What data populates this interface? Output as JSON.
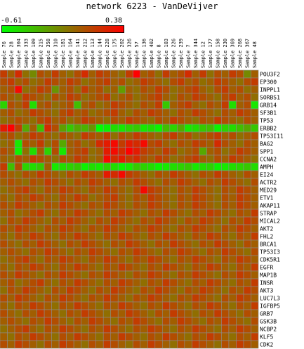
{
  "title": "network 6223 - VanDeVijver",
  "scale": {
    "min_label": "-0.61",
    "max_label": "0.38",
    "min": -0.61,
    "max": 0.38,
    "colors": {
      "low": "#00ff00",
      "mid": "#7f7f00",
      "high": "#ff0000"
    }
  },
  "chart_data": {
    "type": "heatmap",
    "title": "network 6223 - VanDeVijver",
    "columns": [
      "Sample 76",
      "Sample 28",
      "Sample 304",
      "Sample 333",
      "Sample 109",
      "Sample 215",
      "Sample 358",
      "Sample 310",
      "Sample 181",
      "Sample 164",
      "Sample 141",
      "Sample 212",
      "Sample 113",
      "Sample 144",
      "Sample 228",
      "Sample 175",
      "Sample 202",
      "Sample 326",
      "Sample 57",
      "Sample 136",
      "Sample 402",
      "Sample 8",
      "Sample 103",
      "Sample 226",
      "Sample 239",
      "Sample 7",
      "Sample 344",
      "Sample 12",
      "Sample 177",
      "Sample 158",
      "Sample 230",
      "Sample 369",
      "Sample 268",
      "Sample 367",
      "Sample 48"
    ],
    "rows": [
      "POU3F2",
      "EP300",
      "INPPL1",
      "SORBS1",
      "GRB14",
      "SF3B1",
      "TP53",
      "ERBB2",
      "TP53I11",
      "BAG2",
      "SPP1",
      "CCNA2",
      "AMPH",
      "EI24",
      "ACTR2",
      "MED29",
      "ETV1",
      "AKAP11",
      "STRAP",
      "MICAL2",
      "AKT2",
      "FHL2",
      "BRCA1",
      "TP53I3",
      "CDK5R1",
      "EGFR",
      "MAP1B",
      "INSR",
      "AKT3",
      "LUC7L3",
      "IGFBP5",
      "GRB7",
      "GSK3B",
      "NCBP2",
      "KLF5",
      "CDK2"
    ],
    "value_range": [
      -0.61,
      0.38
    ],
    "values": [
      [
        0.2,
        0.1,
        0.25,
        0.05,
        -0.05,
        0.15,
        0.1,
        0.2,
        0.1,
        0.05,
        0.15,
        0.25,
        0.1,
        0.2,
        0.15,
        0.1,
        0.05,
        0.2,
        0.38,
        0.1,
        0.15,
        0.05,
        0.2,
        0.1,
        0.15,
        0.25,
        0.1,
        0.2,
        0.05,
        0.15,
        0.1,
        0.2,
        0.15,
        -0.05,
        0.1
      ],
      [
        0.15,
        0.2,
        0.1,
        0.15,
        0.05,
        0.1,
        0.2,
        0.15,
        0.1,
        0.2,
        0.15,
        0.05,
        0.1,
        0.15,
        0.2,
        0.1,
        0.15,
        0.05,
        0.1,
        0.2,
        0.15,
        0.1,
        0.05,
        0.15,
        0.2,
        0.1,
        0.15,
        0.05,
        0.1,
        0.2,
        0.15,
        0.1,
        0.05,
        0.15,
        0.2
      ],
      [
        0.1,
        0.15,
        0.35,
        0.05,
        0.1,
        0.2,
        0.15,
        -0.1,
        0.1,
        0.15,
        0.05,
        0.2,
        0.1,
        0.15,
        0.05,
        0.1,
        -0.15,
        0.1,
        0.05,
        0.15,
        0.1,
        0.2,
        0.15,
        0.05,
        0.1,
        0.15,
        0.2,
        0.1,
        0.05,
        0.15,
        0.2,
        0.1,
        0.15,
        0.05,
        0.1
      ],
      [
        0.15,
        0.1,
        0.05,
        0.2,
        0.15,
        0.1,
        0.05,
        0.15,
        0.1,
        0.2,
        0.15,
        0.05,
        0.1,
        0.15,
        0.2,
        0.05,
        0.1,
        0.15,
        0.05,
        0.1,
        0.15,
        0.2,
        0.1,
        0.05,
        0.15,
        0.1,
        0.2,
        0.15,
        0.1,
        0.05,
        0.15,
        0.2,
        0.1,
        0.15,
        0.05
      ],
      [
        -0.4,
        0.15,
        0.1,
        0.2,
        -0.45,
        0.1,
        0.15,
        0.05,
        0.1,
        0.15,
        -0.3,
        0.1,
        0.15,
        0.05,
        0.1,
        0.2,
        0.15,
        0.1,
        0.05,
        0.15,
        0.1,
        0.2,
        -0.35,
        0.1,
        0.15,
        0.2,
        0.1,
        0.05,
        0.15,
        0.1,
        0.2,
        -0.45,
        0.1,
        0.15,
        -0.5
      ],
      [
        0.1,
        0.15,
        0.05,
        0.1,
        0.2,
        0.15,
        0.1,
        0.05,
        0.15,
        0.2,
        0.1,
        0.15,
        0.05,
        0.1,
        0.15,
        0.2,
        0.1,
        0.05,
        0.15,
        0.1,
        0.2,
        0.15,
        0.1,
        0.05,
        0.15,
        0.1,
        0.2,
        0.15,
        0.1,
        0.05,
        0.15,
        0.1,
        0.2,
        0.15,
        0.1
      ],
      [
        0.05,
        0.1,
        0.15,
        0.1,
        0.05,
        0.15,
        0.2,
        0.1,
        0.15,
        0.05,
        0.1,
        0.2,
        0.15,
        0.1,
        0.05,
        0.15,
        0.1,
        0.2,
        0.15,
        0.1,
        0.05,
        0.15,
        0.1,
        0.2,
        0.15,
        0.1,
        0.05,
        0.15,
        0.1,
        0.2,
        0.15,
        0.1,
        0.05,
        0.15,
        0.1
      ],
      [
        0.3,
        0.38,
        0.2,
        -0.2,
        0.1,
        -0.3,
        0.25,
        0.15,
        -0.15,
        -0.35,
        -0.2,
        -0.25,
        -0.1,
        -0.61,
        -0.55,
        -0.45,
        -0.5,
        -0.4,
        -0.35,
        -0.5,
        -0.45,
        -0.55,
        -0.3,
        -0.4,
        -0.2,
        -0.5,
        -0.45,
        -0.35,
        -0.3,
        -0.55,
        -0.4,
        -0.45,
        -0.3,
        -0.2,
        -0.35
      ],
      [
        0.1,
        0.15,
        0.05,
        0.1,
        0.2,
        0.15,
        0.1,
        0.05,
        0.15,
        0.1,
        0.05,
        0.2,
        0.15,
        0.1,
        0.2,
        0.05,
        0.15,
        0.1,
        0.2,
        0.15,
        0.1,
        0.05,
        0.15,
        0.2,
        0.1,
        0.15,
        0.05,
        0.1,
        0.15,
        0.2,
        0.1,
        0.15,
        0.05,
        0.1,
        0.15
      ],
      [
        0.05,
        0.1,
        -0.5,
        0.15,
        0.1,
        0.2,
        0.05,
        0.15,
        -0.2,
        0.1,
        0.15,
        0.05,
        0.1,
        0.25,
        0.3,
        0.35,
        0.2,
        0.3,
        0.25,
        0.35,
        0.15,
        0.2,
        0.1,
        0.05,
        0.15,
        0.1,
        0.2,
        0.15,
        0.1,
        0.25,
        0.15,
        0.1,
        0.05,
        0.15,
        0.1
      ],
      [
        0.15,
        0.1,
        -0.55,
        0.05,
        -0.45,
        0.1,
        -0.4,
        0.15,
        -0.5,
        0.1,
        0.15,
        0.2,
        0.05,
        0.1,
        0.3,
        0.35,
        0.25,
        0.38,
        0.3,
        0.2,
        0.15,
        0.1,
        0.2,
        0.15,
        0.05,
        0.1,
        0.15,
        -0.2,
        0.1,
        0.15,
        0.05,
        0.1,
        0.2,
        0.15,
        0.1
      ],
      [
        0.1,
        0.05,
        0.15,
        0.1,
        0.2,
        0.15,
        0.1,
        0.05,
        0.15,
        0.1,
        0.2,
        0.15,
        0.05,
        0.1,
        0.35,
        0.25,
        0.3,
        0.2,
        0.25,
        0.15,
        0.1,
        0.2,
        0.15,
        0.05,
        0.1,
        0.15,
        0.2,
        0.1,
        0.05,
        0.15,
        0.1,
        0.2,
        0.15,
        0.1,
        0.05
      ],
      [
        0.2,
        -0.3,
        0.15,
        -0.4,
        -0.45,
        -0.35,
        0.1,
        -0.5,
        -0.45,
        -0.4,
        -0.35,
        -0.55,
        -0.45,
        -0.5,
        -0.4,
        -0.45,
        -0.55,
        -0.5,
        -0.35,
        -0.4,
        -0.45,
        -0.55,
        -0.5,
        -0.45,
        -0.4,
        -0.35,
        -0.5,
        -0.45,
        -0.4,
        -0.55,
        -0.5,
        -0.45,
        -0.4,
        -0.35,
        -0.45
      ],
      [
        0.15,
        0.1,
        0.05,
        0.15,
        0.1,
        0.2,
        0.15,
        0.1,
        0.05,
        0.15,
        0.1,
        0.2,
        0.15,
        0.1,
        0.3,
        0.25,
        0.35,
        0.2,
        0.15,
        0.1,
        0.05,
        0.15,
        0.1,
        0.2,
        0.15,
        0.1,
        0.05,
        0.15,
        0.1,
        0.2,
        0.15,
        0.1,
        0.05,
        0.15,
        0.1
      ],
      [
        0.1,
        0.15,
        0.1,
        0.05,
        0.15,
        0.1,
        0.2,
        0.15,
        0.1,
        0.05,
        0.15,
        0.1,
        0.2,
        0.15,
        0.1,
        0.05,
        0.15,
        0.1,
        0.2,
        0.15,
        0.1,
        0.05,
        0.15,
        0.1,
        0.2,
        0.15,
        0.1,
        0.05,
        0.15,
        0.1,
        0.2,
        0.15,
        0.1,
        0.05,
        0.15
      ],
      [
        0.05,
        0.1,
        0.15,
        0.2,
        0.1,
        0.05,
        0.15,
        0.1,
        0.2,
        0.15,
        0.1,
        0.05,
        0.15,
        0.1,
        0.2,
        0.15,
        0.1,
        0.05,
        0.15,
        0.35,
        0.2,
        0.15,
        0.1,
        0.05,
        0.15,
        0.1,
        0.2,
        0.15,
        0.1,
        0.05,
        0.15,
        0.1,
        0.2,
        0.15,
        0.1
      ],
      [
        0.1,
        0.05,
        0.15,
        0.1,
        0.2,
        0.15,
        0.1,
        0.05,
        0.15,
        0.1,
        0.2,
        0.15,
        0.05,
        0.1,
        0.15,
        0.2,
        0.1,
        0.05,
        0.15,
        0.1,
        0.2,
        0.15,
        0.1,
        0.05,
        0.15,
        0.1,
        0.2,
        0.15,
        0.1,
        0.05,
        0.15,
        0.1,
        0.2,
        0.15,
        0.1
      ],
      [
        0.15,
        0.1,
        0.2,
        0.15,
        0.1,
        0.05,
        0.15,
        0.1,
        0.2,
        0.15,
        0.1,
        0.05,
        0.15,
        0.1,
        0.2,
        0.15,
        0.1,
        0.05,
        0.15,
        0.1,
        0.2,
        0.15,
        0.1,
        0.05,
        0.15,
        0.1,
        0.2,
        0.15,
        0.1,
        0.05,
        0.15,
        0.1,
        0.2,
        0.15,
        0.1
      ],
      [
        0.1,
        0.15,
        0.05,
        0.1,
        0.15,
        0.2,
        0.1,
        0.05,
        0.15,
        0.1,
        0.2,
        0.15,
        0.1,
        0.05,
        0.15,
        0.1,
        0.2,
        0.15,
        0.1,
        0.05,
        0.15,
        0.1,
        0.2,
        0.15,
        0.1,
        0.05,
        0.15,
        0.1,
        0.2,
        0.15,
        0.1,
        0.05,
        0.15,
        0.1,
        0.2
      ],
      [
        0.05,
        0.15,
        0.1,
        0.2,
        0.15,
        0.1,
        0.05,
        0.15,
        0.1,
        0.2,
        0.15,
        0.1,
        0.05,
        0.15,
        0.1,
        0.2,
        0.15,
        0.1,
        0.05,
        0.15,
        0.1,
        0.2,
        0.15,
        0.1,
        0.05,
        0.15,
        0.1,
        0.2,
        0.15,
        0.1,
        0.05,
        0.15,
        0.1,
        0.2,
        0.15
      ],
      [
        0.15,
        0.1,
        0.2,
        0.15,
        0.1,
        0.05,
        0.15,
        0.1,
        0.2,
        0.15,
        0.1,
        0.05,
        0.15,
        0.1,
        0.2,
        0.15,
        0.1,
        0.05,
        0.15,
        0.1,
        0.2,
        0.15,
        0.1,
        0.05,
        0.15,
        0.1,
        0.2,
        0.15,
        0.1,
        0.05,
        0.15,
        0.1,
        0.2,
        0.15,
        0.1
      ],
      [
        0.1,
        0.05,
        0.15,
        0.1,
        0.2,
        0.15,
        0.1,
        0.05,
        0.15,
        0.1,
        0.2,
        0.15,
        0.1,
        0.05,
        0.15,
        0.1,
        0.2,
        0.15,
        0.1,
        0.05,
        0.15,
        0.1,
        0.2,
        0.15,
        0.1,
        0.05,
        0.15,
        0.1,
        0.2,
        0.15,
        0.1,
        0.05,
        0.15,
        0.1,
        0.2
      ],
      [
        0.15,
        0.1,
        0.05,
        0.15,
        0.1,
        0.2,
        0.15,
        0.1,
        0.05,
        0.15,
        0.1,
        0.2,
        0.15,
        0.1,
        0.05,
        0.15,
        0.1,
        0.2,
        0.15,
        0.1,
        0.05,
        0.15,
        0.1,
        0.2,
        0.15,
        0.1,
        0.05,
        0.15,
        0.1,
        0.2,
        0.15,
        0.1,
        0.05,
        0.15,
        0.1
      ],
      [
        0.1,
        0.15,
        0.1,
        0.05,
        0.15,
        0.1,
        0.2,
        0.15,
        0.1,
        0.05,
        0.15,
        0.1,
        0.2,
        0.15,
        0.1,
        0.05,
        0.15,
        0.1,
        0.2,
        0.15,
        0.1,
        0.05,
        0.15,
        0.1,
        0.2,
        0.15,
        0.1,
        0.05,
        0.15,
        0.1,
        0.2,
        0.15,
        0.1,
        0.05,
        0.15
      ],
      [
        0.05,
        0.1,
        0.15,
        0.2,
        0.1,
        0.05,
        0.15,
        0.1,
        0.2,
        0.15,
        0.1,
        0.05,
        0.15,
        0.1,
        0.2,
        0.15,
        0.1,
        0.05,
        0.15,
        0.1,
        0.2,
        0.15,
        0.1,
        0.05,
        0.15,
        0.1,
        0.2,
        0.15,
        0.1,
        0.05,
        0.15,
        0.1,
        0.2,
        0.15,
        0.1
      ],
      [
        0.1,
        0.05,
        0.15,
        0.1,
        0.2,
        0.15,
        0.1,
        0.05,
        0.15,
        0.1,
        0.2,
        0.15,
        0.1,
        0.05,
        0.15,
        0.1,
        0.2,
        0.15,
        0.1,
        0.05,
        0.15,
        0.1,
        0.2,
        0.15,
        0.1,
        0.05,
        0.15,
        0.1,
        0.2,
        0.15,
        0.1,
        0.05,
        0.15,
        0.1,
        0.2
      ],
      [
        0.15,
        0.1,
        0.2,
        0.15,
        0.1,
        0.05,
        0.15,
        0.1,
        0.2,
        0.15,
        0.1,
        0.05,
        0.15,
        0.1,
        0.2,
        0.15,
        0.1,
        0.05,
        0.15,
        0.1,
        0.2,
        0.15,
        0.1,
        0.05,
        0.15,
        0.1,
        0.2,
        0.15,
        0.1,
        0.05,
        0.15,
        0.1,
        0.2,
        0.15,
        0.1
      ],
      [
        0.1,
        0.15,
        0.05,
        0.1,
        0.15,
        0.2,
        0.1,
        0.05,
        0.15,
        0.1,
        0.2,
        0.15,
        0.1,
        0.05,
        0.15,
        0.1,
        0.2,
        0.15,
        0.1,
        0.05,
        0.15,
        0.1,
        0.2,
        0.15,
        0.1,
        0.05,
        0.15,
        0.1,
        0.2,
        0.15,
        0.1,
        0.05,
        0.15,
        0.1,
        0.2
      ],
      [
        0.05,
        0.15,
        0.1,
        0.2,
        0.15,
        0.1,
        0.05,
        0.15,
        0.1,
        0.2,
        0.15,
        0.1,
        0.05,
        0.15,
        0.1,
        0.2,
        0.15,
        0.1,
        0.05,
        0.15,
        0.1,
        0.2,
        0.15,
        0.1,
        0.05,
        0.15,
        0.1,
        0.2,
        0.15,
        0.1,
        0.05,
        0.15,
        0.1,
        0.2,
        0.15
      ],
      [
        0.15,
        0.1,
        0.2,
        0.15,
        0.1,
        0.05,
        0.15,
        0.1,
        0.2,
        0.15,
        0.1,
        0.05,
        0.15,
        0.1,
        0.2,
        0.15,
        0.1,
        0.05,
        0.15,
        0.1,
        0.2,
        0.15,
        0.1,
        0.05,
        0.15,
        0.1,
        0.2,
        0.15,
        0.1,
        0.05,
        0.15,
        0.1,
        0.2,
        0.15,
        0.1
      ],
      [
        0.1,
        0.05,
        0.15,
        0.1,
        0.2,
        0.15,
        0.1,
        0.05,
        0.15,
        0.1,
        0.2,
        0.15,
        0.1,
        0.05,
        0.15,
        0.1,
        0.2,
        0.15,
        0.1,
        0.05,
        0.15,
        0.1,
        0.2,
        0.15,
        0.1,
        0.05,
        0.15,
        0.1,
        0.2,
        0.15,
        0.1,
        0.05,
        0.15,
        0.1,
        0.2
      ],
      [
        0.15,
        0.1,
        0.05,
        0.15,
        0.1,
        0.2,
        0.15,
        0.1,
        0.05,
        0.15,
        0.1,
        0.2,
        0.15,
        0.1,
        0.05,
        0.15,
        0.1,
        0.2,
        0.15,
        0.1,
        0.05,
        0.15,
        0.1,
        0.2,
        0.15,
        0.1,
        0.05,
        0.15,
        0.1,
        0.2,
        0.15,
        0.1,
        0.05,
        0.15,
        0.1
      ],
      [
        0.1,
        0.15,
        0.1,
        0.05,
        0.15,
        0.1,
        0.2,
        0.15,
        0.1,
        0.05,
        0.15,
        0.1,
        0.2,
        0.15,
        0.1,
        0.05,
        0.15,
        0.1,
        0.2,
        0.15,
        0.1,
        0.05,
        0.15,
        0.1,
        0.2,
        0.15,
        0.1,
        0.05,
        0.15,
        0.1,
        0.2,
        0.15,
        0.1,
        0.05,
        0.15
      ],
      [
        0.05,
        0.1,
        0.15,
        0.2,
        0.1,
        0.05,
        0.15,
        0.1,
        0.2,
        0.15,
        0.1,
        0.05,
        0.15,
        0.1,
        0.2,
        0.15,
        0.1,
        0.05,
        0.15,
        0.1,
        0.2,
        0.15,
        0.1,
        0.05,
        0.15,
        0.1,
        0.2,
        0.15,
        0.1,
        0.05,
        0.15,
        0.1,
        0.2,
        0.15,
        0.1
      ],
      [
        0.1,
        0.05,
        0.15,
        0.1,
        0.2,
        0.15,
        0.1,
        0.05,
        0.15,
        0.1,
        0.2,
        0.15,
        0.1,
        0.05,
        0.15,
        0.1,
        0.2,
        0.15,
        0.1,
        0.05,
        0.15,
        0.1,
        0.2,
        0.15,
        0.1,
        0.05,
        0.15,
        0.1,
        0.2,
        0.15,
        0.1,
        0.05,
        0.15,
        0.1,
        0.2
      ],
      [
        0.15,
        0.1,
        0.2,
        0.15,
        0.1,
        0.05,
        0.15,
        0.1,
        0.2,
        0.15,
        0.1,
        0.05,
        0.15,
        0.1,
        0.2,
        0.15,
        0.1,
        0.05,
        0.15,
        0.1,
        0.2,
        0.15,
        0.1,
        0.05,
        0.15,
        0.1,
        0.2,
        0.15,
        0.1,
        0.05,
        0.15,
        0.1,
        0.2,
        0.15,
        0.1
      ]
    ]
  }
}
